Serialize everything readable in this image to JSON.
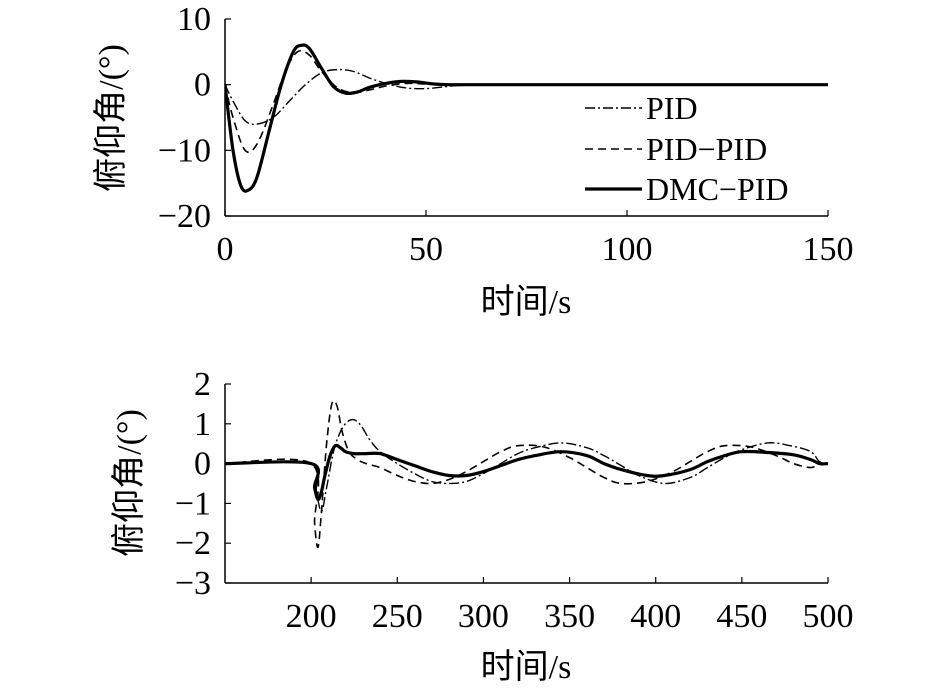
{
  "chart_data": [
    {
      "type": "line",
      "xlabel": "时间/s",
      "ylabel": "俯仰角/(°)",
      "xlim": [
        0,
        150
      ],
      "ylim": [
        -20,
        10
      ],
      "xticks": [
        "0",
        "50",
        "100",
        "150"
      ],
      "yticks": [
        "10",
        "0",
        "−10",
        "−20"
      ],
      "xtick_values": [
        0,
        50,
        100,
        150
      ],
      "ytick_values": [
        10,
        0,
        -10,
        -20
      ],
      "legend_position": "right",
      "grid": false,
      "series": [
        {
          "name": "PID",
          "style": "dashdot",
          "width": 1.4,
          "x": [
            0,
            2,
            5,
            8,
            12,
            16,
            20,
            24,
            28,
            32,
            36,
            40,
            45,
            50,
            55,
            60,
            70,
            80,
            150
          ],
          "y": [
            0,
            -2.5,
            -5.5,
            -6,
            -5,
            -2.5,
            0,
            1.8,
            2.3,
            2,
            1,
            0.2,
            -0.5,
            -0.6,
            -0.3,
            0,
            0,
            0,
            0
          ]
        },
        {
          "name": "PID−PID",
          "style": "dashed",
          "width": 1.6,
          "x": [
            0,
            2,
            5,
            8,
            12,
            15,
            18,
            21,
            24,
            28,
            32,
            36,
            40,
            45,
            50,
            55,
            60,
            70,
            150
          ],
          "y": [
            0,
            -5,
            -10,
            -9,
            -3,
            2,
            5,
            4.5,
            2,
            -0.5,
            -1.2,
            -0.8,
            -0.2,
            0.2,
            0.1,
            0,
            0,
            0,
            0
          ]
        },
        {
          "name": "DMC−PID",
          "style": "solid",
          "width": 3.2,
          "x": [
            0,
            2,
            4,
            6,
            8,
            11,
            14,
            17,
            19,
            21,
            24,
            27,
            30,
            33,
            36,
            40,
            44,
            48,
            52,
            56,
            60,
            70,
            150
          ],
          "y": [
            0,
            -10,
            -15.5,
            -16,
            -14,
            -7,
            0,
            5,
            6,
            5.5,
            2.5,
            -0.3,
            -1.3,
            -1.1,
            -0.4,
            0.2,
            0.5,
            0.4,
            0.1,
            0,
            0,
            0,
            0
          ]
        }
      ]
    },
    {
      "type": "line",
      "xlabel": "时间/s",
      "ylabel": "俯仰角/(°)",
      "xlim": [
        150,
        500
      ],
      "ylim": [
        -3,
        2
      ],
      "xticks": [
        "200",
        "250",
        "300",
        "350",
        "400",
        "450",
        "500"
      ],
      "yticks": [
        "2",
        "1",
        "0",
        "−1",
        "−2",
        "−3"
      ],
      "xtick_values": [
        200,
        250,
        300,
        350,
        400,
        450,
        500
      ],
      "ytick_values": [
        2,
        1,
        0,
        -1,
        -2,
        -3
      ],
      "grid": false,
      "series": [
        {
          "name": "PID",
          "style": "dashdot",
          "width": 1.4,
          "x": [
            150,
            200,
            203,
            206,
            209,
            213,
            217,
            221,
            225,
            229,
            234,
            240,
            250,
            260,
            270,
            280,
            290,
            300,
            310,
            320,
            330,
            345,
            360,
            370,
            380,
            390,
            405,
            420,
            430,
            440,
            450,
            465,
            478,
            490,
            495,
            500
          ],
          "y": [
            0,
            0,
            -0.7,
            -1.2,
            -0.6,
            0.3,
            0.8,
            1.05,
            1.1,
            0.95,
            0.6,
            0.3,
            0,
            -0.25,
            -0.45,
            -0.5,
            -0.45,
            -0.25,
            0,
            0.25,
            0.4,
            0.52,
            0.4,
            0.2,
            -0.05,
            -0.3,
            -0.5,
            -0.35,
            -0.1,
            0.15,
            0.35,
            0.52,
            0.45,
            0.3,
            0.05,
            0
          ]
        },
        {
          "name": "PID−PID",
          "style": "dashed",
          "width": 1.6,
          "x": [
            150,
            200,
            202,
            204,
            206,
            209,
            212,
            215,
            218,
            222,
            227,
            232,
            240,
            250,
            260,
            270,
            280,
            290,
            300,
            310,
            320,
            335,
            350,
            360,
            370,
            380,
            395,
            410,
            420,
            430,
            440,
            455,
            470,
            480,
            490,
            495,
            500
          ],
          "y": [
            0,
            0,
            -1.5,
            -2.1,
            -1.2,
            0.5,
            1.5,
            1.45,
            0.8,
            0.3,
            0.1,
            0,
            -0.1,
            -0.3,
            -0.45,
            -0.5,
            -0.4,
            -0.2,
            0.05,
            0.3,
            0.45,
            0.42,
            0.15,
            -0.1,
            -0.35,
            -0.5,
            -0.45,
            -0.2,
            0.05,
            0.3,
            0.45,
            0.42,
            0.2,
            0,
            -0.1,
            0,
            0
          ]
        },
        {
          "name": "DMC−PID",
          "style": "solid",
          "width": 3.2,
          "x": [
            150,
            200,
            202,
            204,
            206,
            208,
            211,
            214,
            217,
            220,
            225,
            232,
            240,
            250,
            260,
            270,
            280,
            290,
            300,
            310,
            320,
            330,
            345,
            360,
            370,
            380,
            395,
            405,
            420,
            430,
            440,
            450,
            465,
            480,
            490,
            495,
            500
          ],
          "y": [
            0,
            0,
            -0.6,
            -0.9,
            -0.7,
            -0.3,
            0.2,
            0.45,
            0.4,
            0.3,
            0.25,
            0.25,
            0.25,
            0.1,
            -0.05,
            -0.2,
            -0.3,
            -0.3,
            -0.2,
            -0.05,
            0.1,
            0.2,
            0.3,
            0.2,
            0,
            -0.15,
            -0.3,
            -0.3,
            -0.15,
            0.05,
            0.2,
            0.3,
            0.28,
            0.22,
            0.1,
            0,
            0
          ]
        }
      ]
    }
  ]
}
